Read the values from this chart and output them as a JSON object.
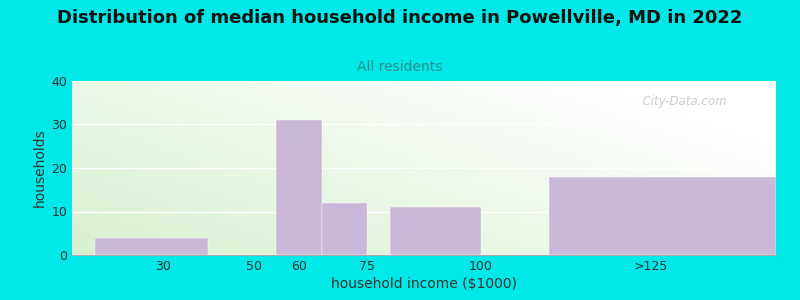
{
  "title": "Distribution of median household income in Powellville, MD in 2022",
  "subtitle": "All residents",
  "xlabel": "household income ($1000)",
  "ylabel": "households",
  "categories": [
    "30",
    "50",
    "60",
    "75",
    "100",
    ">125"
  ],
  "values": [
    4,
    0,
    31,
    12,
    11,
    18
  ],
  "bar_color": "#c9b8d8",
  "ylim": [
    0,
    40
  ],
  "yticks": [
    0,
    10,
    20,
    30,
    40
  ],
  "background_color": "#00e8e8",
  "plot_bg_green": "#d8f0d0",
  "plot_bg_white": "#ffffff",
  "title_fontsize": 13,
  "subtitle_fontsize": 10,
  "subtitle_color": "#2a9090",
  "axis_label_fontsize": 10,
  "watermark_text": "  City-Data.com",
  "bar_lefts": [
    15,
    45,
    55,
    65,
    80,
    115
  ],
  "bar_widths": [
    25,
    5,
    10,
    10,
    20,
    50
  ],
  "xlim": [
    10,
    165
  ],
  "xtick_positions": [
    30,
    50,
    60,
    75,
    100,
    137.5
  ],
  "xtick_labels": [
    "30",
    "50",
    "60",
    "75",
    "100",
    ">125"
  ]
}
